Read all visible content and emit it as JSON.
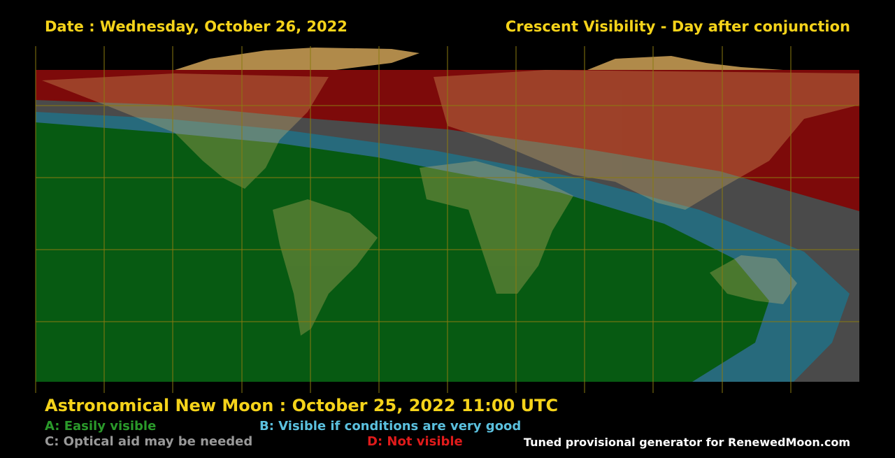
{
  "header": {
    "date": "Date : Wednesday, October 26, 2022",
    "title": "Crescent Visibility - Day after conjunction"
  },
  "footer": {
    "new_moon": "Astronomical New Moon : October 25, 2022 11:00 UTC",
    "credit": "Tuned provisional generator for RenewedMoon.com"
  },
  "legend": {
    "items": [
      "A: Easily visible",
      "B: Visible if conditions are very good",
      "C: Optical aid may be needed",
      "D: Not visible"
    ]
  }
}
